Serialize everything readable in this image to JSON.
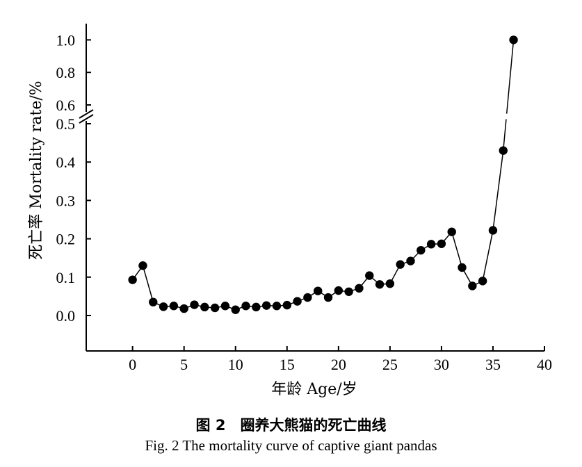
{
  "caption": {
    "zh": "图 2　圈养大熊猫的死亡曲线",
    "en": "Fig.  2    The mortality curve of captive giant pandas"
  },
  "chart_data": {
    "type": "line",
    "xlabel": "年龄 Age/岁",
    "ylabel": "死亡率 Mortality rate/%",
    "xlim": [
      -4.5,
      40
    ],
    "ylim": [
      -0.09,
      1.07
    ],
    "axis_break": {
      "between": [
        0.5,
        0.6
      ],
      "lower_segment": [
        -0.09,
        0.5
      ],
      "upper_segment": [
        0.6,
        1.07
      ]
    },
    "x_ticks": [
      0,
      5,
      10,
      15,
      20,
      25,
      30,
      35,
      40
    ],
    "x_tick_labels": [
      "0",
      "5",
      "10",
      "15",
      "20",
      "25",
      "30",
      "35",
      "40"
    ],
    "y_ticks_lower": [
      0.0,
      0.1,
      0.2,
      0.3,
      0.4,
      0.5
    ],
    "y_tick_labels_lower": [
      "0.0",
      "0.1",
      "0.2",
      "0.3",
      "0.4",
      "0.5"
    ],
    "y_ticks_upper": [
      0.6,
      0.8,
      1.0
    ],
    "y_tick_labels_upper": [
      "0.6",
      "0.8",
      "1.0"
    ],
    "grid": false,
    "marker": "filled-circle",
    "series": [
      {
        "x": [
          0,
          1,
          2,
          3,
          4,
          5,
          6,
          7,
          8,
          9,
          10,
          11,
          12,
          13,
          14,
          15,
          16,
          17,
          18,
          19,
          20,
          21,
          22,
          23,
          24,
          25,
          26,
          27,
          28,
          29,
          30,
          31,
          32,
          33,
          34,
          35,
          36,
          37
        ],
        "y": [
          0.093,
          0.13,
          0.035,
          0.023,
          0.025,
          0.018,
          0.028,
          0.022,
          0.02,
          0.025,
          0.015,
          0.025,
          0.022,
          0.026,
          0.025,
          0.027,
          0.037,
          0.047,
          0.064,
          0.047,
          0.065,
          0.062,
          0.071,
          0.104,
          0.081,
          0.083,
          0.133,
          0.142,
          0.17,
          0.186,
          0.187,
          0.218,
          0.125,
          0.077,
          0.09,
          0.222,
          0.43,
          1.0
        ]
      }
    ]
  }
}
